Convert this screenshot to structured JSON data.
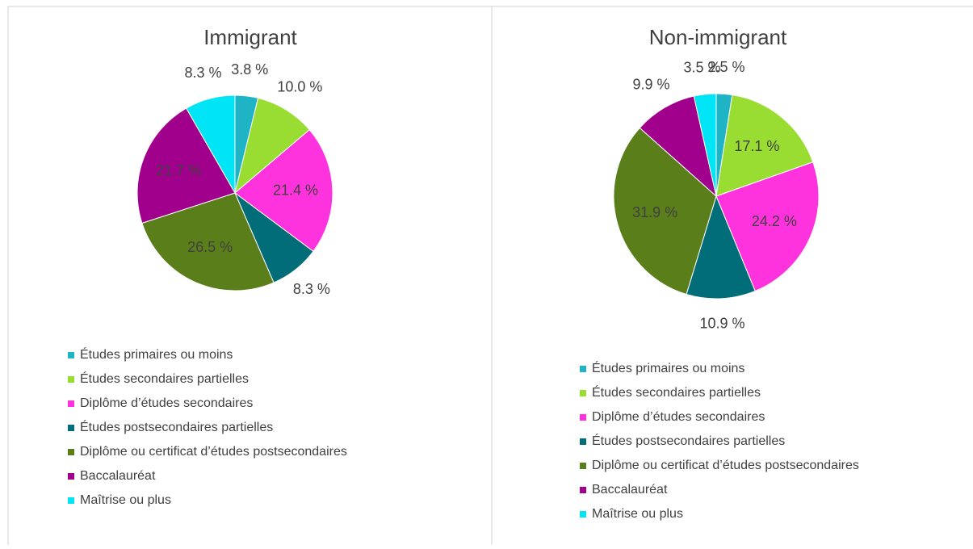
{
  "chart_data": [
    {
      "type": "pie",
      "title": "Immigrant",
      "categories": [
        "Études primaires ou moins",
        "Études secondaires partielles",
        "Diplôme d’études secondaires",
        "Études postsecondaires partielles",
        "Diplôme ou certificat d’études postsecondaires",
        "Baccalauréat",
        "Maîtrise ou plus"
      ],
      "values": [
        3.8,
        10.0,
        21.4,
        8.3,
        26.5,
        21.7,
        8.3
      ],
      "value_labels": [
        "3.8 %",
        "10.0 %",
        "21.4 %",
        "8.3 %",
        "26.5 %",
        "21.7 %",
        "8.3 %"
      ],
      "colors": [
        "#1fb3c6",
        "#99dd33",
        "#ff33dd",
        "#006d78",
        "#5a7f1a",
        "#a0008c",
        "#00e5f5"
      ]
    },
    {
      "type": "pie",
      "title": "Non-immigrant",
      "categories": [
        "Études primaires ou moins",
        "Études secondaires partielles",
        "Diplôme d’études secondaires",
        "Études postsecondaires partielles",
        "Diplôme ou certificat d’études postsecondaires",
        "Baccalauréat",
        "Maîtrise ou plus"
      ],
      "values": [
        2.5,
        17.1,
        24.2,
        10.9,
        31.9,
        9.9,
        3.5
      ],
      "value_labels": [
        "2.5 %",
        "17.1 %",
        "24.2 %",
        "10.9 %",
        "31.9 %",
        "9.9 %",
        "3.5 %"
      ],
      "colors": [
        "#1fb3c6",
        "#99dd33",
        "#ff33dd",
        "#006d78",
        "#5a7f1a",
        "#a0008c",
        "#00e5f5"
      ]
    }
  ]
}
